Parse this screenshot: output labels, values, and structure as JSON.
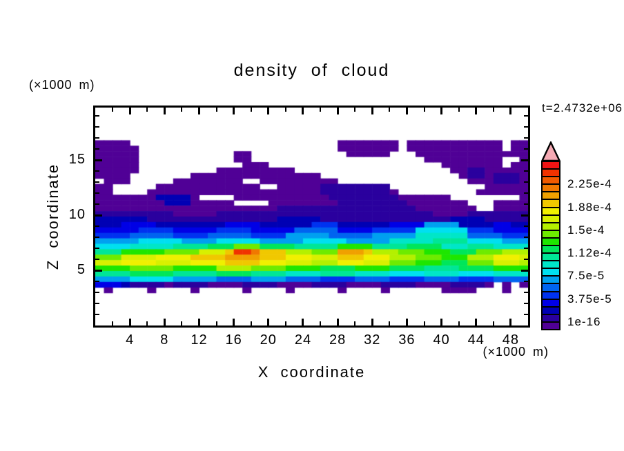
{
  "figure": {
    "title": "density of cloud",
    "time_label": "t=2.4732e+06",
    "x_axis": {
      "label": "X coordinate",
      "unit": "(×1000 m)"
    },
    "y_axis": {
      "label": "Z coordinate",
      "unit": "(×1000 m)"
    }
  },
  "chart_data": {
    "type": "heatmap",
    "title": "density of cloud",
    "annotation": "t=2.4732e+06",
    "xlabel": "X coordinate",
    "x_unit": "(×1000 m)",
    "ylabel": "Z coordinate",
    "y_unit": "(×1000 m)",
    "x_range": [
      0,
      50
    ],
    "z_range": [
      0,
      19.75
    ],
    "x_major_ticks": [
      4,
      8,
      12,
      16,
      20,
      24,
      28,
      32,
      36,
      40,
      44,
      48
    ],
    "x_minor_ticks": [
      2,
      6,
      10,
      14,
      18,
      22,
      26,
      30,
      34,
      38,
      42,
      46
    ],
    "z_major_ticks": [
      5,
      10,
      15
    ],
    "z_minor_ticks": [
      1,
      2,
      3,
      4,
      6,
      7,
      8,
      9,
      11,
      12,
      13,
      14,
      16,
      17,
      18,
      19
    ],
    "grid_on": false,
    "colorbar": {
      "labels": [
        "1e-16",
        "3.75e-5",
        "7.5e-5",
        "1.12e-4",
        "1.5e-4",
        "1.88e-4",
        "2.25e-4"
      ],
      "label_boundaries": [
        1,
        4,
        7,
        10,
        13,
        16,
        19
      ],
      "segments_bottom_to_top": [
        "#500096",
        "#2a009e",
        "#0000b4",
        "#0000e6",
        "#0032f0",
        "#0064f0",
        "#00a0f0",
        "#00e0f0",
        "#00e6c8",
        "#00e696",
        "#00e65a",
        "#1ee600",
        "#6eeb00",
        "#b4f000",
        "#d8f000",
        "#f0f000",
        "#f0c800",
        "#f0a000",
        "#f07800",
        "#f05a00",
        "#f03200",
        "#f01414"
      ],
      "overflow_arrow_color": "#f5aab4"
    },
    "palette": {
      "a": "#500096",
      "b": "#2a009e",
      "c": "#0000b4",
      "d": "#0000e6",
      "e": "#0032f0",
      "f": "#0064f0",
      "g": "#00a0f0",
      "h": "#00e0f0",
      "i": "#00e6c8",
      "j": "#00e696",
      "k": "#00e65a",
      "l": "#1ee600",
      "m": "#6eeb00",
      "n": "#b4f000",
      "o": "#d8f000",
      "p": "#f0f000",
      "q": "#f0c800",
      "r": "#f0a000",
      "s": "#f07800",
      "t": "#f05a00",
      "u": "#f03200",
      "v": "#f01414"
    },
    "grid_cols": 50,
    "grid_rows": 40,
    "grid_rows_top_to_bottom": [
      "..................................................",
      "..................................................",
      "..................................................",
      "..................................................",
      "..................................................",
      "..................................................",
      "aaaa........................aaaaaaa.aaaaaaaaaaa.aa",
      "aaaaa.......................aaaaaaa.aaaaaaaaaaa.aa",
      "aaaaa...........aa...........aaaaa...aaaaaaaaaaaaa",
      "aaaaa...........aa....................aaaaaaaaa..a",
      "aaaaa............aaa....................aaaaaaa.aa",
      "aaaaa.........aaaaaaaaa..................aabbaaaaa",
      "aaaa.......aaaaaaaaaaaaaaa................abbabbba",
      ".aaa.....aaaaaaaa..aaaaaaaaa...............aaabbba",
      "aa.....aaaaaaaaaaaa..aaaaabbbbbbbb...........aaaaa",
      "aa....aaaaaaaaaaaaaaaaaaaabbbbbbbba.........aaaaaa",
      "aaaaaaacccca....aaaaaaaaaaabbbbbbbbaaaaaa........a",
      "aaaaaaaacccaaaaa....aaaaaaaabbbbbbbbaaaaaaa...aaaa",
      "aaaaaaaaaaaaaaaaaaaaabbbbbbbbbbbbbbbbaaaaaaa..aaaa",
      "bbbbbbbbbaaaaabbbbbbbbbbbbbbbbbbbbbbbbbaaaabbbbbbb",
      "ccccccbbbbbbbbbbbbbbbcccccbbbbbbbbbbbbbbbccccbbbbb",
      "cccddddccccccccddddcccccceeeccccccddddggggccccddcc",
      "dddddeeeedddddeeeedddddfffffddddeeeeehhhhhheeedddd",
      "eeeefffffeeeefffffeeeegggggfffffgggggiiiiiiffffeee",
      "ggggghhhhhgggghhhhhggggghhhhhgggggiiiiijjjjhhhhggg",
      "hhhhiiiiijjjjkkkmmmkkkkjjjjjlllljjjjkkkkiiijjjiiii",
      "jjjlllllmmmmoooquusqqqnnnmmmrrrqnnnmmmlllkkkmmmnnn",
      "mmmooooppppqqqqrrrrqqqpppoooqqqpppnnnmmmlllnnnpppo",
      "oooppppooooppppqqqqpppooonnnpppooommmlllkkkmmmooon",
      "llllmmmmmlllllnnnnmmmmllllkkkkllllkkkkjjjjkkkkllll",
      "jjjjkkkkkjjjjjkkkkjjjjiiiijjjjiiiihhhhiiiihhhhiiii",
      "gggghhhhhgggggffffggggffffeeeeffffeeeeffffeeeeffff",
      "dddcbbbbabbbbaaaabbbbaaaabbbbaaaabbbbaaaabbbba.a.a",
      ".a....a....a.....a....a.....a....a......aaaa...a..",
      "..................................................",
      "..................................................",
      "..................................................",
      "..................................................",
      "..................................................",
      ".................................................."
    ]
  }
}
